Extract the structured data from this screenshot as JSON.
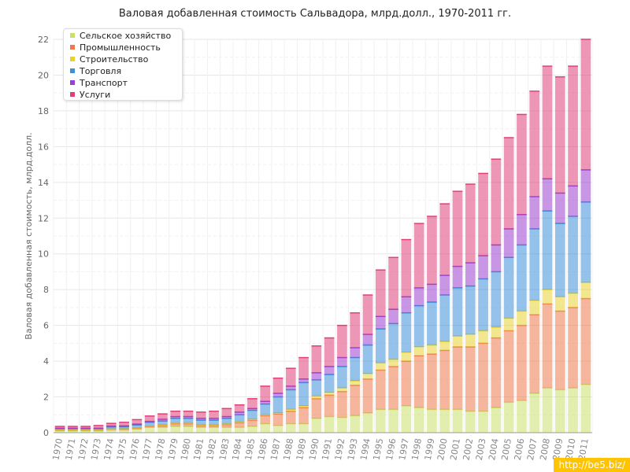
{
  "chart_data": {
    "type": "bar",
    "stacked": true,
    "title": "Валовая добавленная стоимость Сальвадора, млрд.долл., 1970-2011 гг.",
    "xlabel": "",
    "ylabel": "Валовая добавленная стоимость, млрд.долл.",
    "ylim": [
      0,
      22
    ],
    "yticks": [
      0,
      2,
      4,
      6,
      8,
      10,
      12,
      14,
      16,
      18,
      20,
      22
    ],
    "grid": true,
    "legend_position": "top-left",
    "categories": [
      "1970",
      "1971",
      "1972",
      "1973",
      "1974",
      "1975",
      "1976",
      "1977",
      "1978",
      "1979",
      "1980",
      "1981",
      "1982",
      "1983",
      "1984",
      "1985",
      "1986",
      "1987",
      "1988",
      "1989",
      "1990",
      "1991",
      "1992",
      "1993",
      "1994",
      "1995",
      "1996",
      "1997",
      "1998",
      "1999",
      "2000",
      "2001",
      "2002",
      "2003",
      "2004",
      "2005",
      "2006",
      "2007",
      "2008",
      "2009",
      "2010",
      "2011"
    ],
    "series": [
      {
        "name": "Сельское хозяйство",
        "color": "#c8e06a",
        "values": [
          0.1,
          0.1,
          0.1,
          0.1,
          0.15,
          0.15,
          0.2,
          0.3,
          0.3,
          0.35,
          0.35,
          0.3,
          0.3,
          0.3,
          0.3,
          0.35,
          0.5,
          0.4,
          0.5,
          0.5,
          0.8,
          0.9,
          0.85,
          0.95,
          1.1,
          1.3,
          1.3,
          1.5,
          1.4,
          1.3,
          1.3,
          1.3,
          1.2,
          1.2,
          1.4,
          1.7,
          1.8,
          2.2,
          2.5,
          2.4,
          2.5,
          2.7
        ]
      },
      {
        "name": "Промышленность",
        "color": "#ee7a4c",
        "values": [
          0.05,
          0.05,
          0.05,
          0.05,
          0.05,
          0.05,
          0.05,
          0.05,
          0.1,
          0.15,
          0.15,
          0.1,
          0.1,
          0.15,
          0.25,
          0.35,
          0.45,
          0.65,
          0.7,
          0.9,
          1.1,
          1.2,
          1.45,
          1.7,
          1.9,
          2.2,
          2.4,
          2.5,
          2.9,
          3.1,
          3.3,
          3.5,
          3.6,
          3.8,
          3.9,
          4.0,
          4.2,
          4.4,
          4.7,
          4.4,
          4.5,
          4.8
        ]
      },
      {
        "name": "Строительство",
        "color": "#e8d232",
        "values": [
          0.02,
          0.02,
          0.02,
          0.02,
          0.02,
          0.03,
          0.03,
          0.03,
          0.05,
          0.05,
          0.05,
          0.05,
          0.05,
          0.05,
          0.05,
          0.05,
          0.05,
          0.05,
          0.1,
          0.1,
          0.15,
          0.15,
          0.2,
          0.25,
          0.3,
          0.4,
          0.4,
          0.5,
          0.5,
          0.5,
          0.5,
          0.6,
          0.7,
          0.7,
          0.6,
          0.7,
          0.8,
          0.8,
          0.8,
          0.8,
          0.8,
          0.9
        ]
      },
      {
        "name": "Торговля",
        "color": "#3d8fd8",
        "values": [
          0.05,
          0.05,
          0.05,
          0.05,
          0.1,
          0.1,
          0.15,
          0.2,
          0.2,
          0.25,
          0.25,
          0.25,
          0.25,
          0.3,
          0.4,
          0.5,
          0.6,
          0.9,
          1.1,
          1.3,
          0.9,
          1.0,
          1.2,
          1.3,
          1.6,
          1.9,
          2.0,
          2.2,
          2.3,
          2.4,
          2.6,
          2.7,
          2.7,
          2.9,
          3.1,
          3.4,
          3.7,
          4.0,
          4.4,
          4.1,
          4.3,
          4.5
        ]
      },
      {
        "name": "Транспорт",
        "color": "#9b3fd0",
        "values": [
          0.03,
          0.03,
          0.03,
          0.03,
          0.05,
          0.05,
          0.05,
          0.05,
          0.1,
          0.1,
          0.1,
          0.1,
          0.1,
          0.1,
          0.15,
          0.1,
          0.15,
          0.2,
          0.2,
          0.2,
          0.4,
          0.45,
          0.5,
          0.55,
          0.6,
          0.7,
          0.8,
          0.9,
          1.0,
          1.0,
          1.1,
          1.2,
          1.3,
          1.3,
          1.5,
          1.6,
          1.7,
          1.8,
          1.8,
          1.7,
          1.7,
          1.8
        ]
      },
      {
        "name": "Услуги",
        "color": "#e0407a",
        "values": [
          0.1,
          0.1,
          0.1,
          0.15,
          0.15,
          0.2,
          0.25,
          0.3,
          0.3,
          0.3,
          0.3,
          0.35,
          0.4,
          0.45,
          0.4,
          0.55,
          0.85,
          0.85,
          1.0,
          1.2,
          1.5,
          1.6,
          1.8,
          1.95,
          2.2,
          2.6,
          2.9,
          3.2,
          3.6,
          3.8,
          4.0,
          4.2,
          4.4,
          4.6,
          4.8,
          5.1,
          5.6,
          5.9,
          6.3,
          6.5,
          6.7,
          7.3
        ]
      }
    ]
  },
  "watermark": "http://be5.biz/"
}
